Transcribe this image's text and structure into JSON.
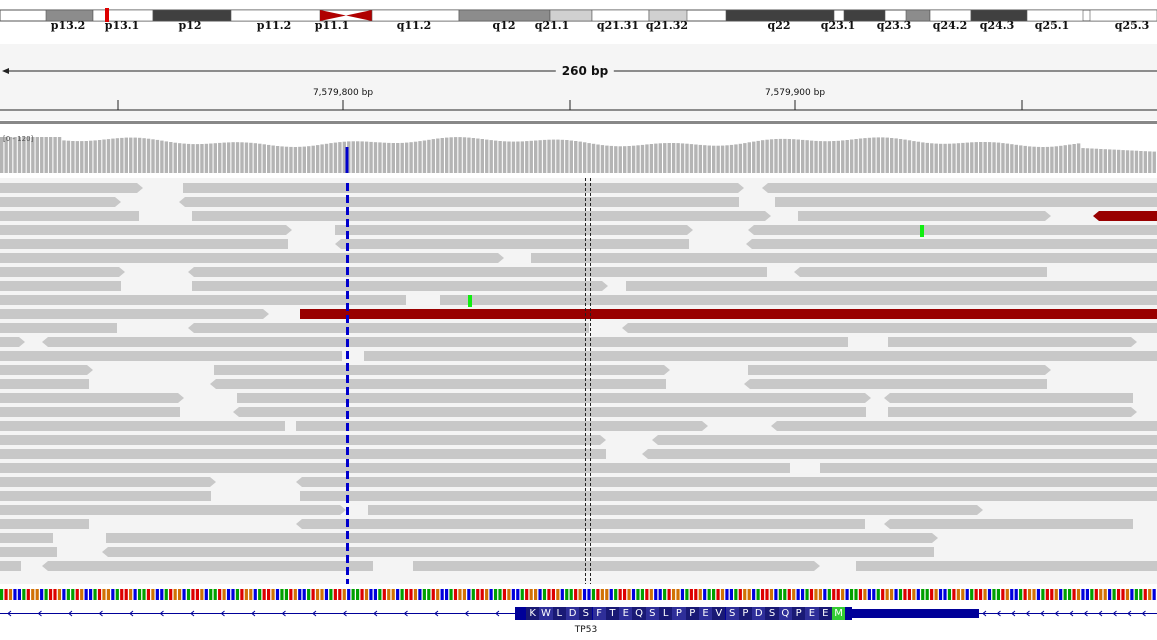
{
  "ideogram": {
    "bands": [
      {
        "name": "p13.2",
        "start": 46,
        "end": 93,
        "color": "#8c8c8c",
        "label_x": 68
      },
      {
        "name": "p13.1",
        "start": 93,
        "end": 153,
        "color": "#ffffff",
        "label_x": 122
      },
      {
        "name": "p12",
        "start": 153,
        "end": 231,
        "color": "#404040",
        "label_x": 190
      },
      {
        "name": "p11.2",
        "start": 231,
        "end": 320,
        "color": "#ffffff",
        "label_x": 274
      },
      {
        "name": "p11.1",
        "start": 320,
        "end": 346,
        "color": "centromere",
        "label_x": 332
      },
      {
        "name": "q11.2",
        "start": 372,
        "end": 459,
        "color": "#ffffff",
        "label_x": 414
      },
      {
        "name": "q12",
        "start": 459,
        "end": 550,
        "color": "#8c8c8c",
        "label_x": 504
      },
      {
        "name": "q21.1",
        "start": 550,
        "end": 592,
        "color": "#d0d0d0",
        "label_x": 552
      },
      {
        "name": "q21.31",
        "start": 592,
        "end": 649,
        "color": "#ffffff",
        "label_x": 618
      },
      {
        "name": "q21.32",
        "start": 649,
        "end": 687,
        "color": "#d0d0d0",
        "label_x": 667
      },
      {
        "name": "q22",
        "start": 726,
        "end": 834,
        "color": "#404040",
        "label_x": 779
      },
      {
        "name": "q23.1",
        "start": 844,
        "end": 885,
        "color": "#404040",
        "label_x": 838
      },
      {
        "name": "q23.3",
        "start": 906,
        "end": 930,
        "color": "#8c8c8c",
        "label_x": 894
      },
      {
        "name": "q24.2",
        "start": 930,
        "end": 971,
        "color": "#ffffff",
        "label_x": 950
      },
      {
        "name": "q24.3",
        "start": 971,
        "end": 1027,
        "color": "#404040",
        "label_x": 997
      },
      {
        "name": "q25.1",
        "start": 1027,
        "end": 1083,
        "color": "#ffffff",
        "label_x": 1052
      },
      {
        "name": "q25.3",
        "start": 1090,
        "end": 1157,
        "color": "#ffffff",
        "label_x": 1132
      }
    ]
  },
  "ruler": {
    "span_label": "260 bp",
    "ticks": [
      {
        "label": "7,579,800 bp",
        "x": 343
      },
      {
        "label": "7,579,900 bp",
        "x": 795
      }
    ]
  },
  "coverage": {
    "range_label": "[0 - 120]"
  },
  "gene": {
    "name": "TP53",
    "amino_acids": [
      "K",
      "W",
      "L",
      "D",
      "S",
      "F",
      "T",
      "E",
      "Q",
      "S",
      "L",
      "P",
      "P",
      "E",
      "V",
      "S",
      "P",
      "D",
      "S",
      "Q",
      "P",
      "E",
      "E",
      "M"
    ]
  },
  "colors": {
    "read_gray": "#c8c8c8",
    "discordant_read": "#990000",
    "indel_marker": "#0000cc",
    "mismatch": "#11ee11",
    "gene_dark": "#000099",
    "exon_amino_dark": "#191975",
    "exon_amino_light": "#2e2e99",
    "start_codon": "#33cc33"
  }
}
